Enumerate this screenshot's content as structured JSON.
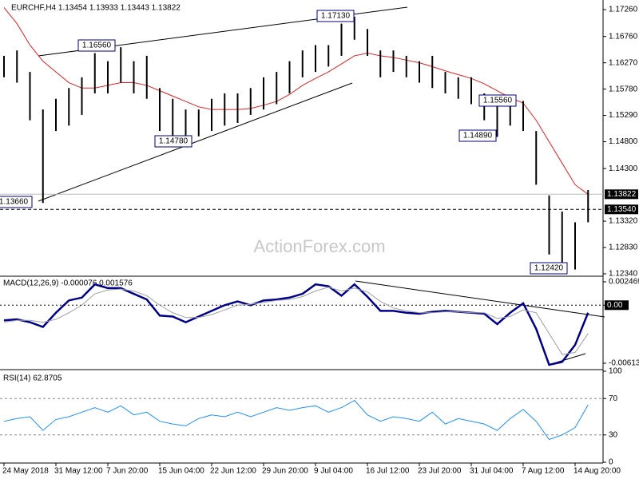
{
  "chart_data": [
    {
      "type": "ohlc",
      "title": "EURCHF,H4  1.13454 1.13933 1.13443 1.13822",
      "watermark": "ActionForex.com",
      "categories": [
        "24 May 2018",
        null,
        null,
        null,
        "31 May 12:00",
        null,
        null,
        null,
        "7 Jun 20:00",
        null,
        null,
        null,
        "15 Jun 04:00",
        null,
        null,
        null,
        "22 Jun 12:00",
        null,
        null,
        null,
        "29 Jun 20:00",
        null,
        null,
        null,
        "9 Jul 04:00",
        null,
        null,
        null,
        "16 Jul 12:00",
        null,
        null,
        null,
        "23 Jul 20:00",
        null,
        null,
        null,
        "31 Jul 04:00",
        null,
        null,
        null,
        "7 Aug 12:00",
        null,
        null,
        null,
        "14 Aug 20:00",
        null
      ],
      "high": [
        1.164,
        1.165,
        1.161,
        1.154,
        1.156,
        1.158,
        1.16,
        1.1645,
        1.163,
        1.1656,
        1.163,
        1.164,
        1.158,
        1.156,
        1.154,
        1.154,
        1.156,
        1.157,
        1.157,
        1.158,
        1.16,
        1.161,
        1.163,
        1.165,
        1.166,
        1.166,
        1.17,
        1.1713,
        1.169,
        1.165,
        1.165,
        1.164,
        1.163,
        1.164,
        1.161,
        1.16,
        1.16,
        1.157,
        1.155,
        1.156,
        1.1556,
        1.15,
        1.138,
        1.135,
        1.133,
        1.139
      ],
      "low": [
        1.16,
        1.159,
        1.152,
        1.1366,
        1.15,
        1.151,
        1.153,
        1.157,
        1.157,
        1.159,
        1.157,
        1.156,
        1.15,
        1.149,
        1.1478,
        1.149,
        1.15,
        1.151,
        1.1515,
        1.153,
        1.154,
        1.155,
        1.157,
        1.16,
        1.161,
        1.162,
        1.164,
        1.167,
        1.164,
        1.16,
        1.161,
        1.16,
        1.159,
        1.158,
        1.157,
        1.156,
        1.155,
        1.152,
        1.1489,
        1.151,
        1.15,
        1.14,
        1.127,
        1.125,
        1.1242,
        1.133
      ],
      "color": "#000000",
      "overlays": [
        {
          "color": "#e02020",
          "values": [
            1.173,
            1.17,
            1.166,
            1.163,
            1.161,
            1.159,
            1.158,
            1.158,
            1.1585,
            1.159,
            1.159,
            1.1585,
            1.1575,
            1.1565,
            1.1555,
            1.1545,
            1.154,
            1.154,
            1.154,
            1.1542,
            1.1548,
            1.1555,
            1.1568,
            1.1585,
            1.1598,
            1.161,
            1.1625,
            1.164,
            1.1645,
            1.164,
            1.1637,
            1.1632,
            1.1627,
            1.162,
            1.1612,
            1.1605,
            1.1598,
            1.1588,
            1.1575,
            1.1562,
            1.1552,
            1.152,
            1.148,
            1.144,
            1.14,
            1.1382
          ]
        }
      ],
      "ylim": [
        1.1231,
        1.1741
      ],
      "yticks": [
        {
          "value": 1.1726,
          "label": "1.17260"
        },
        {
          "value": 1.1676,
          "label": "1.16760"
        },
        {
          "value": 1.1627,
          "label": "1.16270"
        },
        {
          "value": 1.1578,
          "label": "1.15780"
        },
        {
          "value": 1.1529,
          "label": "1.15290"
        },
        {
          "value": 1.148,
          "label": "1.14800"
        },
        {
          "value": 1.143,
          "label": "1.14300"
        },
        {
          "value": 1.1332,
          "label": "1.13320"
        },
        {
          "value": 1.1283,
          "label": "1.12830"
        },
        {
          "value": 1.1234,
          "label": "1.12340"
        }
      ],
      "last_price": {
        "value": 1.13822,
        "label": "1.13822"
      },
      "level": {
        "value": 1.1354,
        "label": "1.13540"
      },
      "annotations": [
        "1.16560",
        "1.14780",
        "1.17130",
        "1.15560",
        "1.14890",
        "1.12420",
        "1.13660"
      ]
    },
    {
      "type": "line",
      "title": "MACD(12,26,9) -0.000076 0.001576",
      "series": [
        {
          "color": "#00008b",
          "values": [
            -0.0016,
            -0.0015,
            -0.0018,
            -0.0023,
            -0.0008,
            0.0005,
            0.0008,
            0.0022,
            0.0018,
            0.0018,
            0.0012,
            0.0006,
            -0.0011,
            -0.0012,
            -0.0018,
            -0.0012,
            -0.0006,
            0,
            0.0004,
            0,
            0.0005,
            0.0006,
            0.0008,
            0.0012,
            0.0022,
            0.002,
            0.001,
            0.0022,
            0.0009,
            -0.0006,
            -0.0006,
            -0.0008,
            -0.0009,
            -0.0007,
            -0.0006,
            -0.0007,
            -0.0008,
            -0.0009,
            -0.002,
            -0.0008,
            0.0002,
            -0.0025,
            -0.0063,
            -0.006,
            -0.0042,
            -0.0008
          ]
        },
        {
          "color": "#a0a0a0",
          "values": [
            -0.0018,
            -0.0016,
            -0.0016,
            -0.0018,
            -0.0015,
            -0.0008,
            0,
            0.0012,
            0.0016,
            0.0017,
            0.0015,
            0.001,
            0,
            -0.0008,
            -0.0013,
            -0.0013,
            -0.001,
            -0.0005,
            0,
            0.0001,
            0.0003,
            0.0005,
            0.0006,
            0.0009,
            0.0015,
            0.0019,
            0.0015,
            0.0018,
            0.0014,
            0.0004,
            -0.0003,
            -0.0006,
            -0.0008,
            -0.0008,
            -0.0007,
            -0.0007,
            -0.0008,
            -0.0008,
            -0.0014,
            -0.0012,
            -0.0005,
            -0.0008,
            -0.003,
            -0.0052,
            -0.005,
            -0.003
          ]
        }
      ],
      "ylim": [
        -0.006727,
        0.002891
      ],
      "yticks": [
        {
          "value": 0.002469,
          "label": "0.002469"
        },
        {
          "value": 0,
          "label": "0.00"
        },
        {
          "value": -0.006136,
          "label": "-0.006136"
        }
      ]
    },
    {
      "type": "line",
      "title": "RSI(14) 62.8705",
      "series": [
        {
          "color": "#1e90ff",
          "values": [
            45,
            48,
            50,
            35,
            47,
            50,
            55,
            60,
            55,
            62,
            52,
            55,
            45,
            42,
            40,
            48,
            52,
            50,
            55,
            50,
            55,
            60,
            57,
            60,
            62,
            55,
            60,
            68,
            52,
            45,
            50,
            48,
            45,
            55,
            42,
            48,
            45,
            42,
            35,
            48,
            58,
            45,
            25,
            30,
            38,
            63
          ]
        }
      ],
      "ylim": [
        0,
        100
      ],
      "yticks": [
        0,
        30,
        70,
        100
      ],
      "dashed": [
        30,
        70
      ]
    }
  ]
}
